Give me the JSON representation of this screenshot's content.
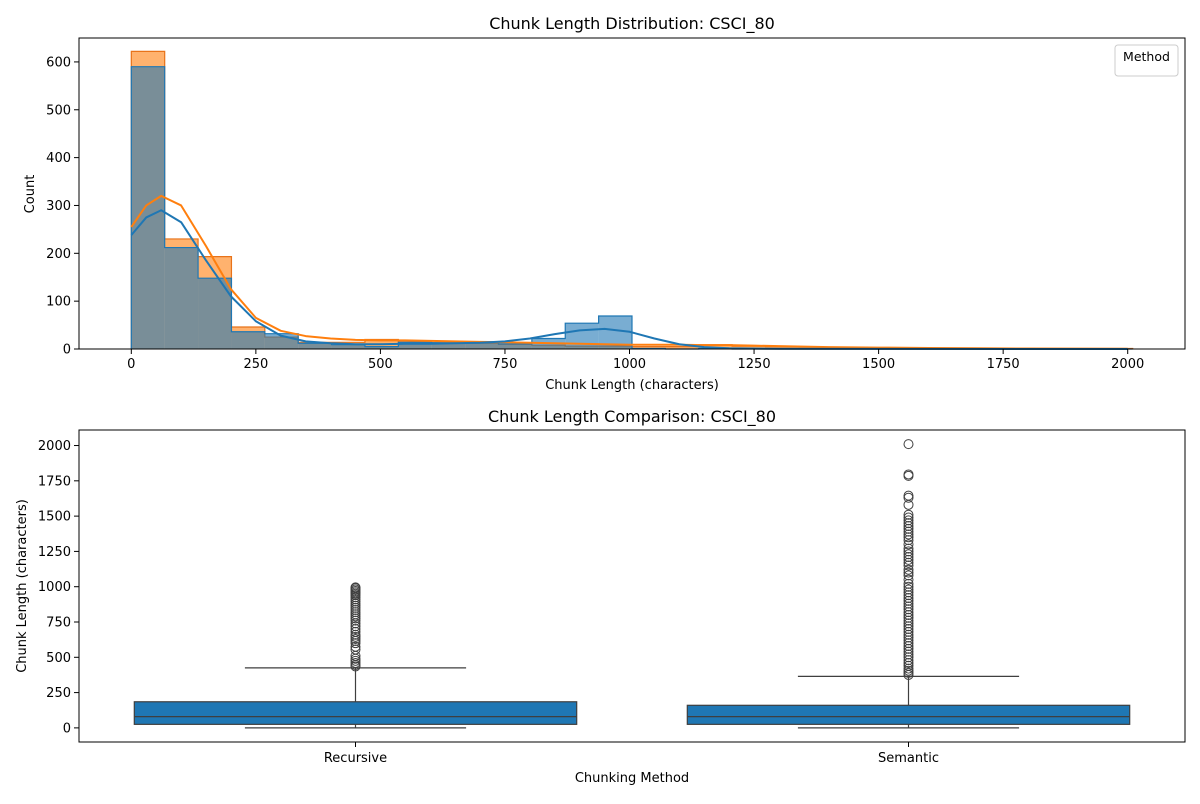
{
  "chart_data": [
    {
      "type": "histogram",
      "title": "Chunk Length Distribution: CSCI_80",
      "xlabel": "Chunk Length (characters)",
      "ylabel": "Count",
      "xlim": [
        -105,
        2115
      ],
      "ylim": [
        0,
        650
      ],
      "xticks": [
        0,
        250,
        500,
        750,
        1000,
        1250,
        1500,
        1750,
        2000
      ],
      "yticks": [
        0,
        100,
        200,
        300,
        400,
        500,
        600
      ],
      "grid": false,
      "legend": {
        "title": "Method",
        "placement": "top-right",
        "entries": []
      },
      "bin_edges": [
        0,
        67,
        134,
        201,
        268,
        335,
        402,
        469,
        536,
        603,
        670,
        737,
        804,
        871,
        938,
        1005,
        1072,
        1139,
        1206,
        1273,
        1340,
        1407,
        1474,
        1541,
        1608,
        1675,
        1742,
        1809,
        1876,
        1943,
        2010
      ],
      "series": [
        {
          "color": "#ff7f0e",
          "edge_color": "#e8731a",
          "counts": [
            622,
            230,
            193,
            46,
            25,
            14,
            14,
            20,
            15,
            13,
            12,
            10,
            8,
            6,
            6,
            5,
            5,
            9,
            6,
            5,
            4,
            3,
            3,
            2,
            2,
            2,
            1,
            1,
            1,
            1
          ],
          "kde": [
            [
              0,
              255
            ],
            [
              30,
              300
            ],
            [
              60,
              320
            ],
            [
              100,
              300
            ],
            [
              150,
              215
            ],
            [
              200,
              125
            ],
            [
              250,
              65
            ],
            [
              300,
              38
            ],
            [
              350,
              27
            ],
            [
              400,
              22
            ],
            [
              450,
              19
            ],
            [
              500,
              18
            ],
            [
              550,
              18
            ],
            [
              600,
              17
            ],
            [
              650,
              16
            ],
            [
              700,
              15
            ],
            [
              750,
              14
            ],
            [
              800,
              13
            ],
            [
              850,
              12
            ],
            [
              900,
              11
            ],
            [
              950,
              10
            ],
            [
              1000,
              9
            ],
            [
              1050,
              9
            ],
            [
              1100,
              9
            ],
            [
              1150,
              8
            ],
            [
              1200,
              8
            ],
            [
              1250,
              7
            ],
            [
              1300,
              6
            ],
            [
              1350,
              5
            ],
            [
              1400,
              4
            ],
            [
              1500,
              3
            ],
            [
              1600,
              2
            ],
            [
              1700,
              1.5
            ],
            [
              1800,
              1
            ],
            [
              2000,
              0.5
            ]
          ]
        },
        {
          "color": "#1f77b4",
          "edge_color": "#1f77b4",
          "counts": [
            590,
            212,
            148,
            36,
            32,
            12,
            9,
            5,
            14,
            13,
            14,
            11,
            22,
            54,
            69,
            1,
            0,
            1,
            0,
            0,
            0,
            0,
            0,
            0,
            0,
            0,
            0,
            0,
            0,
            0
          ],
          "kde": [
            [
              0,
              238
            ],
            [
              30,
              275
            ],
            [
              60,
              290
            ],
            [
              100,
              265
            ],
            [
              150,
              185
            ],
            [
              200,
              110
            ],
            [
              250,
              58
            ],
            [
              300,
              28
            ],
            [
              350,
              16
            ],
            [
              400,
              12
            ],
            [
              450,
              10
            ],
            [
              500,
              10
            ],
            [
              550,
              11
            ],
            [
              600,
              11
            ],
            [
              650,
              12
            ],
            [
              700,
              13
            ],
            [
              750,
              16
            ],
            [
              800,
              22
            ],
            [
              850,
              31
            ],
            [
              900,
              39
            ],
            [
              950,
              42
            ],
            [
              1000,
              36
            ],
            [
              1050,
              22
            ],
            [
              1100,
              10
            ],
            [
              1150,
              4
            ],
            [
              1200,
              1.5
            ],
            [
              1300,
              0.5
            ],
            [
              1500,
              0.2
            ],
            [
              2000,
              0
            ]
          ]
        }
      ]
    },
    {
      "type": "box",
      "title": "Chunk Length Comparison: CSCI_80",
      "xlabel": "Chunking Method",
      "ylabel": "Chunk Length (characters)",
      "categories": [
        "Recursive",
        "Semantic"
      ],
      "ylim": [
        -100,
        2110
      ],
      "yticks": [
        0,
        250,
        500,
        750,
        1000,
        1250,
        1500,
        1750,
        2000
      ],
      "grid": false,
      "color": "#1f77b4",
      "boxes": [
        {
          "min": 0,
          "q1": 25,
          "median": 80,
          "q3": 185,
          "max": 425,
          "outliers": [
            435,
            445,
            460,
            475,
            490,
            510,
            555,
            575,
            600,
            615,
            630,
            645,
            660,
            680,
            700,
            720,
            740,
            760,
            775,
            790,
            805,
            820,
            835,
            850,
            865,
            880,
            895,
            910,
            925,
            940,
            950,
            960,
            970,
            980,
            990,
            995
          ]
        },
        {
          "min": 0,
          "q1": 25,
          "median": 80,
          "q3": 160,
          "max": 365,
          "outliers": [
            375,
            390,
            405,
            420,
            440,
            460,
            480,
            500,
            520,
            540,
            560,
            580,
            600,
            620,
            640,
            660,
            680,
            700,
            720,
            740,
            760,
            780,
            800,
            820,
            840,
            860,
            880,
            900,
            920,
            940,
            960,
            980,
            1000,
            1020,
            1050,
            1080,
            1100,
            1120,
            1150,
            1170,
            1190,
            1210,
            1230,
            1250,
            1270,
            1300,
            1330,
            1350,
            1370,
            1390,
            1410,
            1430,
            1450,
            1470,
            1490,
            1510,
            1580,
            1630,
            1645,
            1785,
            1795,
            2010
          ]
        }
      ]
    }
  ]
}
